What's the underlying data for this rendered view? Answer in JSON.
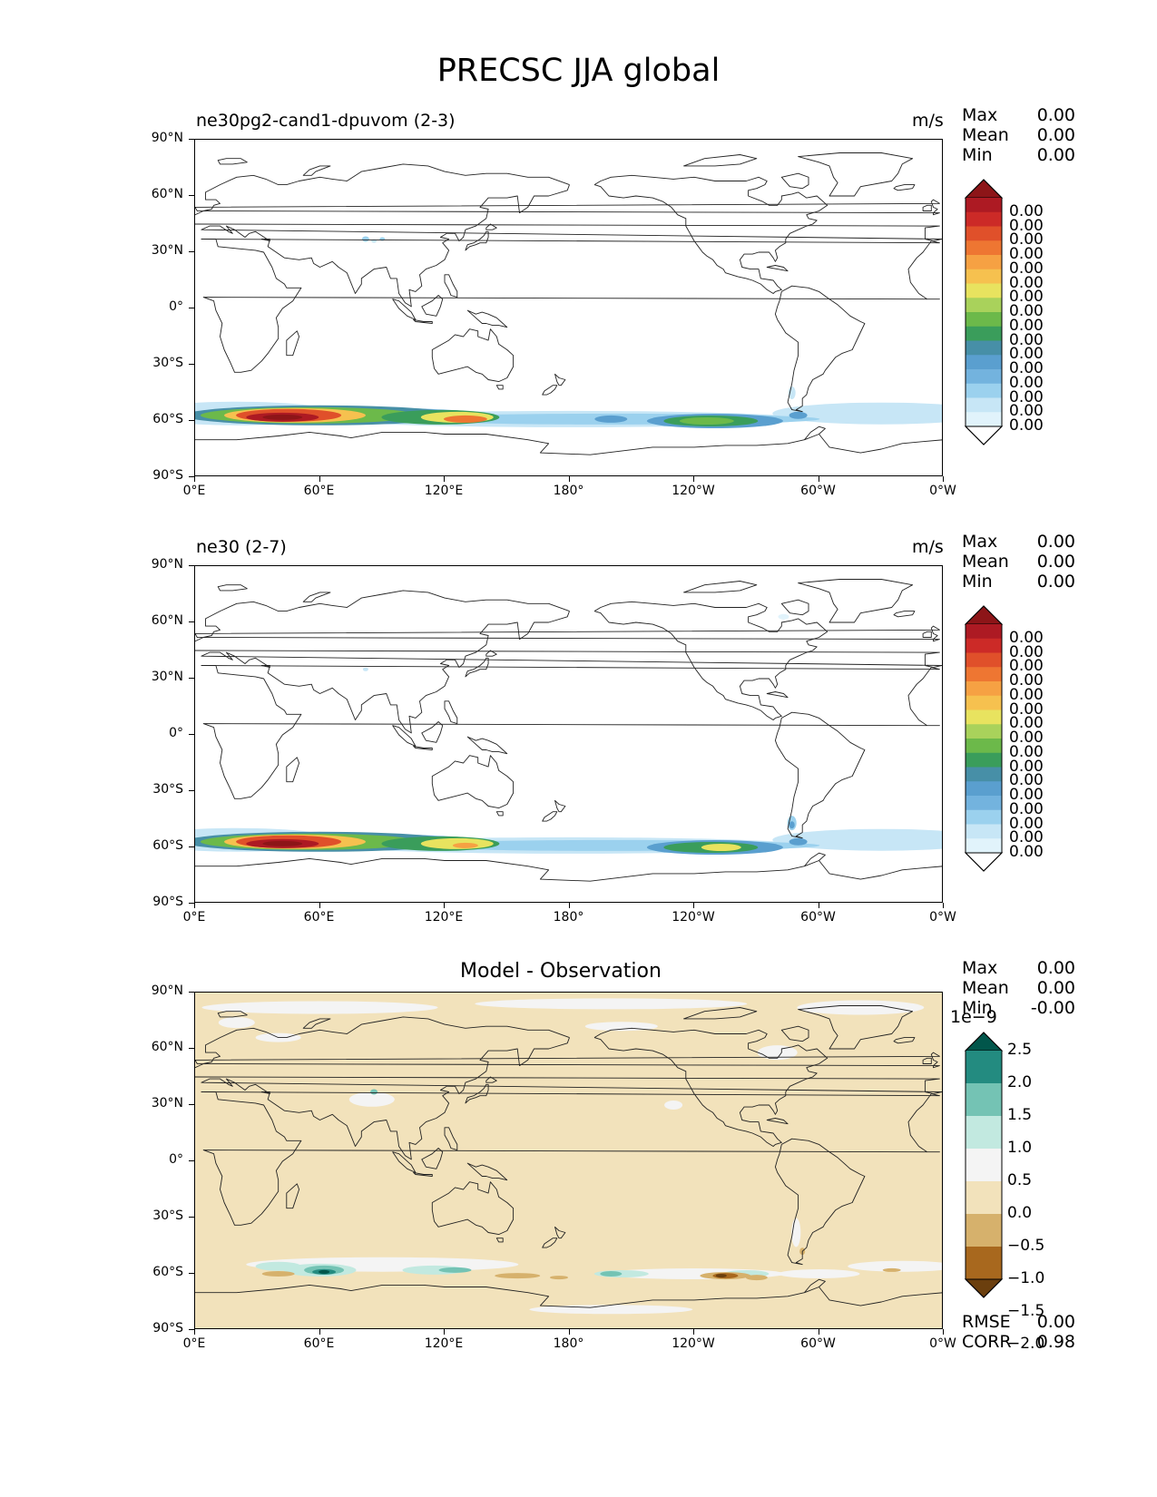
{
  "figure": {
    "title": "PRECSC JJA global"
  },
  "panels": [
    {
      "id": "test",
      "title": "ne30pg2-cand1-dpuvom (2-3)",
      "units": "m/s",
      "stats": [
        {
          "label": "Max",
          "value": "0.00"
        },
        {
          "label": "Mean",
          "value": "0.00"
        },
        {
          "label": "Min",
          "value": "0.00"
        }
      ],
      "colorbar": {
        "colors": [
          "#ffffff",
          "#e1f3fb",
          "#c7e6f6",
          "#9bd1ee",
          "#73b3de",
          "#5a9fcf",
          "#478fa7",
          "#3a9d5b",
          "#6cb94a",
          "#a9d25b",
          "#e8e35f",
          "#f6c14f",
          "#f6a143",
          "#ee7632",
          "#e0502a",
          "#cc2a27",
          "#ad1a23",
          "#8d1518"
        ],
        "labels": [
          "0.00",
          "0.00",
          "0.00",
          "0.00",
          "0.00",
          "0.00",
          "0.00",
          "0.00",
          "0.00",
          "0.00",
          "0.00",
          "0.00",
          "0.00",
          "0.00",
          "0.00",
          "0.00"
        ]
      }
    },
    {
      "id": "reference",
      "title": "ne30 (2-7)",
      "units": "m/s",
      "stats": [
        {
          "label": "Max",
          "value": "0.00"
        },
        {
          "label": "Mean",
          "value": "0.00"
        },
        {
          "label": "Min",
          "value": "0.00"
        }
      ],
      "colorbar": {
        "colors": [
          "#ffffff",
          "#e1f3fb",
          "#c7e6f6",
          "#9bd1ee",
          "#73b3de",
          "#5a9fcf",
          "#478fa7",
          "#3a9d5b",
          "#6cb94a",
          "#a9d25b",
          "#e8e35f",
          "#f6c14f",
          "#f6a143",
          "#ee7632",
          "#e0502a",
          "#cc2a27",
          "#ad1a23",
          "#8d1518"
        ],
        "labels": [
          "0.00",
          "0.00",
          "0.00",
          "0.00",
          "0.00",
          "0.00",
          "0.00",
          "0.00",
          "0.00",
          "0.00",
          "0.00",
          "0.00",
          "0.00",
          "0.00",
          "0.00",
          "0.00"
        ]
      }
    },
    {
      "id": "difference",
      "title": "Model - Observation",
      "units": "",
      "stats": [
        {
          "label": "Max",
          "value": "0.00"
        },
        {
          "label": "Mean",
          "value": "0.00"
        },
        {
          "label": "Min",
          "value": "-0.00"
        }
      ],
      "bottom_stats": [
        {
          "label": "RMSE",
          "value": "0.00"
        },
        {
          "label": "CORR",
          "value": "0.98"
        }
      ],
      "colorbar": {
        "scale_label": "1e−9",
        "colors": [
          "#6b3f0e",
          "#a8681e",
          "#d6b16c",
          "#f2e2bb",
          "#f4f4f4",
          "#c2e9e0",
          "#74c3b4",
          "#238b80",
          "#01564b"
        ],
        "labels": [
          "2.5",
          "2.0",
          "1.5",
          "1.0",
          "0.5",
          "0.0",
          "−0.5",
          "−1.0",
          "−1.5",
          "−2.0"
        ]
      }
    }
  ],
  "axes": {
    "lat_ticks": [
      "90°N",
      "60°N",
      "30°N",
      "0°",
      "30°S",
      "60°S",
      "90°S"
    ],
    "lon_ticks": [
      "0°E",
      "60°E",
      "120°E",
      "180°",
      "120°W",
      "60°W",
      "0°W"
    ]
  },
  "chart_data": [
    {
      "type": "heatmap",
      "title": "ne30pg2-cand1-dpuvom (2-3)",
      "variable": "PRECSC",
      "season": "JJA",
      "units": "m/s",
      "xlabel": "longitude",
      "ylabel": "latitude",
      "xlim": [
        0,
        360
      ],
      "ylim": [
        -90,
        90
      ],
      "stats": {
        "max": 0.0,
        "mean": 0.0,
        "min": 0.0
      },
      "features": [
        {
          "name": "southern_ocean_band",
          "lat_center": -57,
          "lat_halfwidth": 8,
          "lon_range": [
            0,
            360
          ],
          "level": "light"
        },
        {
          "name": "south_indian_max",
          "lat_center": -58,
          "lon_center": 45,
          "peak_level": "highest"
        },
        {
          "name": "indian_secondary",
          "lat_center": -58,
          "lon_center": 128,
          "peak_level": "high"
        },
        {
          "name": "south_pacific_moderate",
          "lat_center": -60,
          "lon_center": 245,
          "peak_level": "moderate"
        },
        {
          "name": "tibet_spots",
          "lat_center": 36,
          "lon_center": 87,
          "peak_level": "light"
        }
      ]
    },
    {
      "type": "heatmap",
      "title": "ne30 (2-7)",
      "variable": "PRECSC",
      "season": "JJA",
      "units": "m/s",
      "xlabel": "longitude",
      "ylabel": "latitude",
      "xlim": [
        0,
        360
      ],
      "ylim": [
        -90,
        90
      ],
      "stats": {
        "max": 0.0,
        "mean": 0.0,
        "min": 0.0
      },
      "features": [
        {
          "name": "southern_ocean_band",
          "lat_center": -57,
          "lat_halfwidth": 8,
          "lon_range": [
            0,
            360
          ],
          "level": "light"
        },
        {
          "name": "south_indian_max",
          "lat_center": -58,
          "lon_center": 45,
          "peak_level": "highest"
        },
        {
          "name": "indian_secondary",
          "lat_center": -58,
          "lon_center": 128,
          "peak_level": "moderate"
        },
        {
          "name": "south_pacific_moderate",
          "lat_center": -60,
          "lon_center": 248,
          "peak_level": "moderate"
        }
      ]
    },
    {
      "type": "heatmap",
      "title": "Model - Observation",
      "variable": "PRECSC",
      "season": "JJA",
      "xlabel": "longitude",
      "ylabel": "latitude",
      "xlim": [
        0,
        360
      ],
      "ylim": [
        -90,
        90
      ],
      "clim": [
        -2e-09,
        2.5e-09
      ],
      "stats": {
        "max": 0.0,
        "mean": 0.0,
        "min": -0.0,
        "rmse": 0.0,
        "corr": 0.98
      },
      "features": [
        {
          "name": "background",
          "value": -2.5e-10
        },
        {
          "name": "southern_ocean_positive",
          "lat_center": -56,
          "lon_range": [
            0,
            360
          ],
          "value": 5e-10
        },
        {
          "name": "indian_positive_max",
          "lat_center": -58,
          "lon_center": 62,
          "value": 2.5e-09
        },
        {
          "name": "pacific_negative_min",
          "lat_center": -61,
          "lon_center": 250,
          "value": -2e-09
        },
        {
          "name": "arctic_near_zero",
          "lat_center": 80,
          "lon_range": [
            0,
            360
          ],
          "value": 0.0
        }
      ]
    }
  ]
}
